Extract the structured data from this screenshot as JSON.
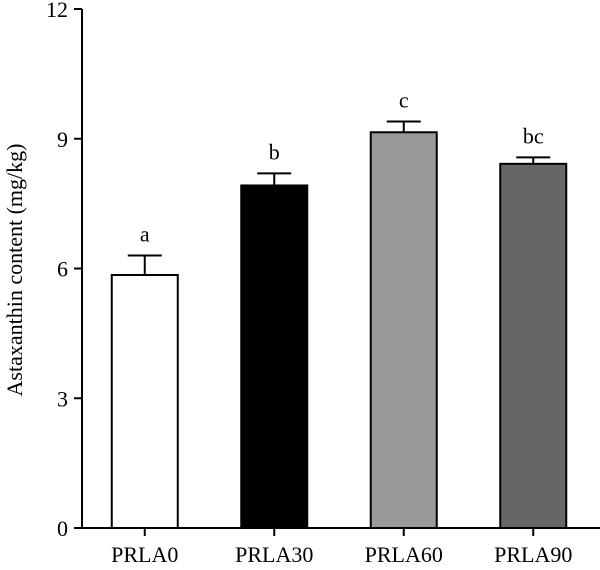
{
  "chart_data": {
    "type": "bar",
    "title": "",
    "xlabel": "",
    "ylabel": "Astaxanthin content (mg/kg)",
    "ylim": [
      0,
      12
    ],
    "yticks": [
      0,
      3,
      6,
      9,
      12
    ],
    "grid": false,
    "legend": "none",
    "categories": [
      "PRLA0",
      "PRLA30",
      "PRLA60",
      "PRLA90"
    ],
    "values": [
      5.85,
      7.92,
      9.15,
      8.42
    ],
    "errors": [
      0.45,
      0.28,
      0.25,
      0.15
    ],
    "significance": [
      "a",
      "b",
      "c",
      "bc"
    ],
    "bar_colors": [
      "#ffffff",
      "#000000",
      "#999999",
      "#666666"
    ]
  }
}
